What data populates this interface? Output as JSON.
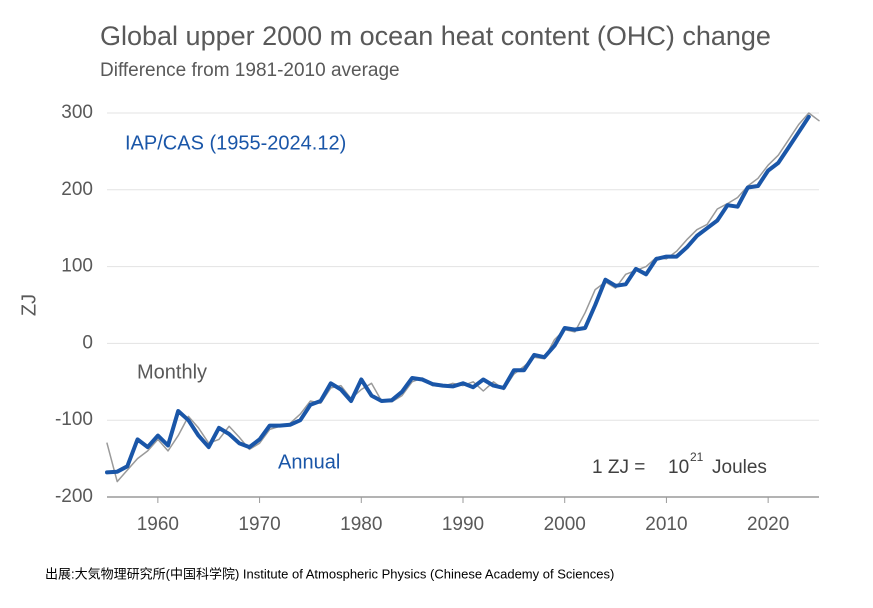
{
  "chart_data": {
    "type": "line",
    "title": "Global upper 2000 m ocean heat content (OHC) change",
    "subtitle": "Difference from 1981-2010 average",
    "ylabel": "ZJ",
    "annotations": [
      "IAP/CAS (1955-2024.12)",
      "Monthly",
      "Annual"
    ],
    "unit_note": [
      "1 ZJ =",
      "10",
      "21",
      "Joules"
    ],
    "source": "出展:大気物理研究所(中国科学院) Institute of Atmospheric Physics (Chinese Academy of Sciences)",
    "xlim": [
      1955,
      2025
    ],
    "xticks": [
      1960,
      1970,
      1980,
      1990,
      2000,
      2010,
      2020
    ],
    "ylim": [
      -200,
      300
    ],
    "yticks": [
      -200,
      -100,
      0,
      100,
      200,
      300
    ],
    "grid": true,
    "series": [
      {
        "name": "Monthly",
        "color": "#9a9a9a",
        "x": [
          1955,
          1956,
          1957,
          1958,
          1959,
          1960,
          1961,
          1962,
          1963,
          1964,
          1965,
          1966,
          1967,
          1968,
          1969,
          1970,
          1971,
          1972,
          1973,
          1974,
          1975,
          1976,
          1977,
          1978,
          1979,
          1980,
          1981,
          1982,
          1983,
          1984,
          1985,
          1986,
          1987,
          1988,
          1989,
          1990,
          1991,
          1992,
          1993,
          1994,
          1995,
          1996,
          1997,
          1998,
          1999,
          2000,
          2001,
          2002,
          2003,
          2004,
          2005,
          2006,
          2007,
          2008,
          2009,
          2010,
          2011,
          2012,
          2013,
          2014,
          2015,
          2016,
          2017,
          2018,
          2019,
          2020,
          2021,
          2022,
          2023,
          2024,
          2025
        ],
        "values": [
          -130,
          -180,
          -165,
          -150,
          -140,
          -125,
          -140,
          -120,
          -95,
          -110,
          -130,
          -125,
          -108,
          -122,
          -138,
          -130,
          -112,
          -108,
          -104,
          -92,
          -75,
          -78,
          -58,
          -55,
          -72,
          -60,
          -52,
          -75,
          -76,
          -68,
          -50,
          -45,
          -55,
          -56,
          -52,
          -55,
          -50,
          -62,
          -50,
          -60,
          -40,
          -30,
          -18,
          -20,
          5,
          18,
          15,
          40,
          70,
          80,
          72,
          90,
          95,
          100,
          112,
          110,
          120,
          135,
          148,
          155,
          175,
          182,
          190,
          205,
          215,
          232,
          245,
          265,
          285,
          300,
          290
        ]
      },
      {
        "name": "Annual",
        "color": "#1a56a8",
        "x": [
          1955,
          1956,
          1957,
          1958,
          1959,
          1960,
          1961,
          1962,
          1963,
          1964,
          1965,
          1966,
          1967,
          1968,
          1969,
          1970,
          1971,
          1972,
          1973,
          1974,
          1975,
          1976,
          1977,
          1978,
          1979,
          1980,
          1981,
          1982,
          1983,
          1984,
          1985,
          1986,
          1987,
          1988,
          1989,
          1990,
          1991,
          1992,
          1993,
          1994,
          1995,
          1996,
          1997,
          1998,
          1999,
          2000,
          2001,
          2002,
          2003,
          2004,
          2005,
          2006,
          2007,
          2008,
          2009,
          2010,
          2011,
          2012,
          2013,
          2014,
          2015,
          2016,
          2017,
          2018,
          2019,
          2020,
          2021,
          2022,
          2023,
          2024
        ],
        "values": [
          -168,
          -167,
          -160,
          -125,
          -135,
          -120,
          -133,
          -88,
          -100,
          -120,
          -135,
          -110,
          -118,
          -130,
          -135,
          -125,
          -107,
          -107,
          -106,
          -100,
          -80,
          -75,
          -52,
          -60,
          -75,
          -47,
          -68,
          -75,
          -74,
          -63,
          -45,
          -47,
          -53,
          -55,
          -56,
          -52,
          -57,
          -47,
          -55,
          -58,
          -35,
          -35,
          -15,
          -18,
          -3,
          20,
          18,
          20,
          50,
          83,
          75,
          77,
          97,
          90,
          110,
          113,
          113,
          125,
          140,
          150,
          160,
          180,
          178,
          203,
          205,
          225,
          235,
          255,
          275,
          295
        ]
      }
    ]
  }
}
